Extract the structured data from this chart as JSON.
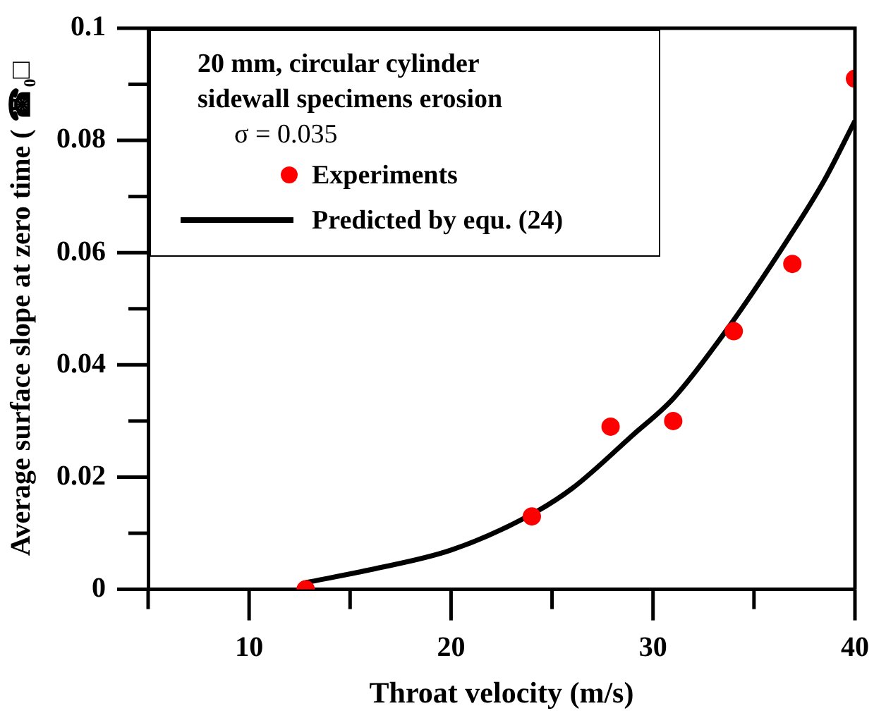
{
  "chart_data": {
    "type": "scatter",
    "xlabel": "Throat velocity (m/s)",
    "ylabel": "Average surface slope at zero time ( ☎₀□",
    "legend_title": "20 mm, circular cylinder\nsidewall specimens erosion",
    "annotations": [
      "σ = 0.035"
    ],
    "xlim": [
      5,
      40
    ],
    "xticks": [
      {
        "value": 5,
        "label": null
      },
      10,
      {
        "value": 15,
        "label": null
      },
      20,
      {
        "value": 25,
        "label": null
      },
      30,
      {
        "value": 35,
        "label": null
      },
      40
    ],
    "ylim": [
      0,
      0.1
    ],
    "yticks": [
      0,
      {
        "value": 0.01,
        "label": null
      },
      0.02,
      {
        "value": 0.03,
        "label": null
      },
      0.04,
      {
        "value": 0.05,
        "label": null
      },
      0.06,
      {
        "value": 0.07,
        "label": null
      },
      0.08,
      {
        "value": 0.09,
        "label": null
      },
      0.1
    ],
    "grid": false,
    "legend": "top left",
    "series": [
      {
        "name": "Experiments",
        "marker": "circle",
        "color": "#ff0000",
        "x": [
          12.8,
          24,
          27.9,
          31,
          34,
          36.9,
          40
        ],
        "values": [
          0,
          0.013,
          0.029,
          0.03,
          0.046,
          0.058,
          0.091
        ]
      },
      {
        "name": "Predicted by equ. (24)",
        "type": "line",
        "marker": "none",
        "line_style": "solid",
        "color": "#000000",
        "x": [
          12.8,
          16,
          20,
          23.8,
          26,
          29,
          31,
          33.6,
          36.7,
          38.5,
          40
        ],
        "values": [
          0.0012,
          0.0035,
          0.007,
          0.013,
          0.018,
          0.0275,
          0.034,
          0.046,
          0.0625,
          0.073,
          0.0835
        ]
      }
    ]
  }
}
